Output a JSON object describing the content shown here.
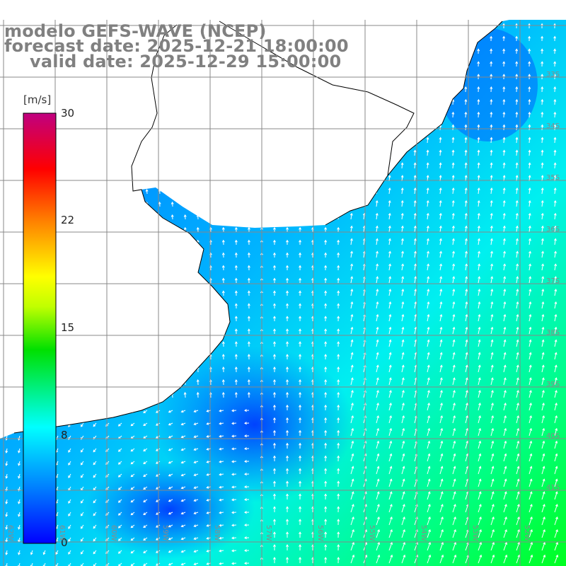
{
  "title": {
    "line1": "modelo GEFS-WAVE (NCEP)",
    "line2": "forecast date: 2025-12-21 18:00:00",
    "line3": "valid date: 2025-12-29 15:00:00"
  },
  "colorbar": {
    "unit": "[m/s]",
    "ticks": [
      "30",
      "22",
      "15",
      "8",
      "0"
    ],
    "min": 0,
    "max": 30,
    "gradient_colors": [
      "#0000ff",
      "#00a0ff",
      "#00ffff",
      "#00ff00",
      "#ffff00",
      "#ff8000",
      "#ff0000",
      "#c00080"
    ]
  },
  "lat_labels": [
    "33S",
    "34S",
    "35S",
    "36S",
    "37S",
    "38S",
    "39S",
    "40S",
    "41S"
  ],
  "lon_labels": [
    "62W",
    "61W",
    "60W",
    "59W",
    "58W",
    "57W",
    "56W",
    "55W",
    "54W",
    "53W",
    "52W"
  ],
  "field": {
    "quantity": "wind speed",
    "units": "m/s",
    "range_shown": [
      0,
      30
    ],
    "dominant_values_open_ocean": [
      6,
      12
    ],
    "min_region": "near the coast southwest",
    "max_region": "southeast corner"
  },
  "colors": {
    "land": "#ffffff",
    "coastline": "#000000",
    "grid": "#888888",
    "title": "#808080",
    "arrow": "#ffffff"
  }
}
